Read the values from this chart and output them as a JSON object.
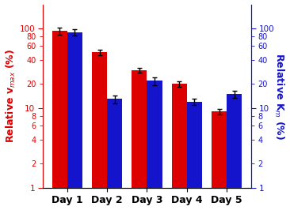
{
  "categories": [
    "Day 1",
    "Day 2",
    "Day 3",
    "Day 4",
    "Day 5"
  ],
  "red_values": [
    93,
    50,
    30,
    20,
    9
  ],
  "red_errors": [
    9,
    4,
    2,
    1.5,
    0.7
  ],
  "blue_values": [
    90,
    13,
    22,
    12,
    15
  ],
  "blue_errors": [
    8,
    1.5,
    2.5,
    1.2,
    1.5
  ],
  "red_color": "#DD0000",
  "blue_color": "#1414CC",
  "left_ylabel": "Relative v$_{max}$ (%)",
  "right_ylabel": "Relative K$_m$ (%)",
  "bar_width": 0.38,
  "figsize": [
    3.66,
    2.66
  ],
  "dpi": 100,
  "label_fontsize": 9,
  "tick_fontsize": 7.5,
  "xticklabel_fontsize": 9
}
